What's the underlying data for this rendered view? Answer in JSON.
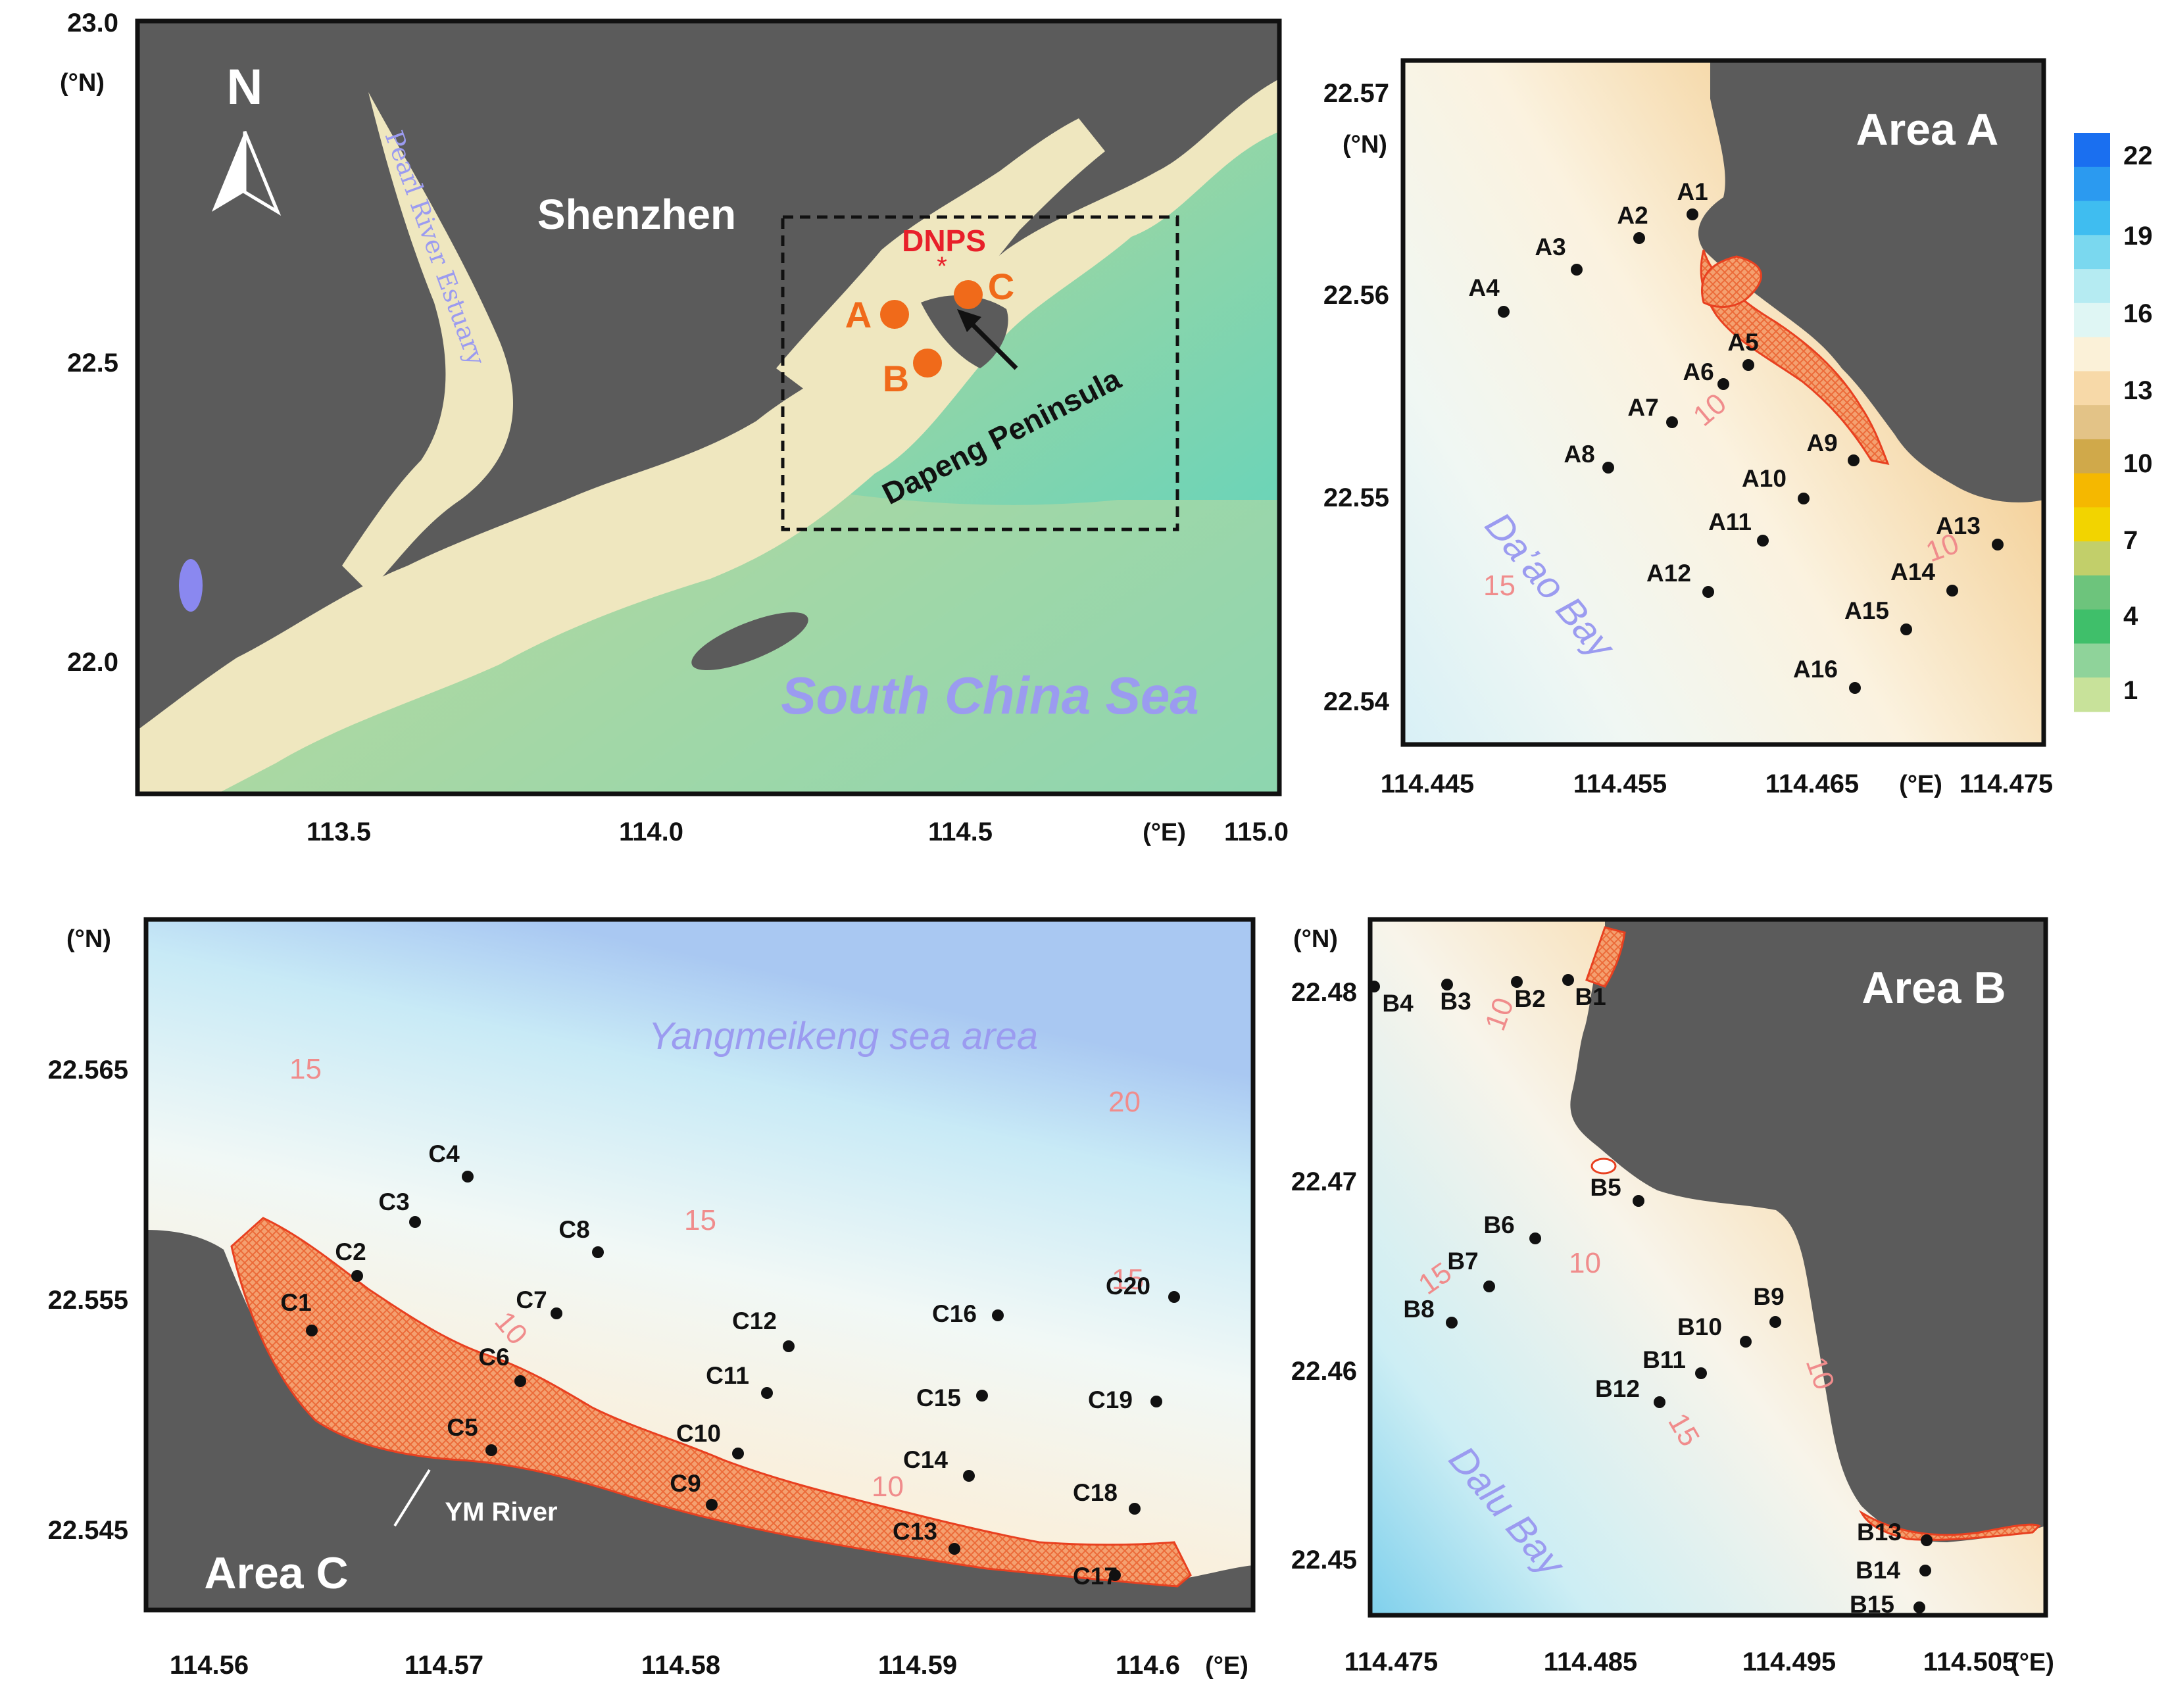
{
  "colors": {
    "land": "#5b5b5b",
    "shallow": "#efe7bf",
    "mid": "#d6d6a0",
    "deep": "#8fd4a6",
    "sea_light": "#e8f4ef",
    "sea_blue": "#bcdcf0",
    "habitat": "#f08050",
    "station": "#111111",
    "isobath_label": "#f08c8c",
    "sea_label": "#9b9bf0",
    "dnps": "#e8202a",
    "site_marker": "#f06a1a"
  },
  "overview": {
    "y_ticks": [
      "23.0",
      "22.5",
      "22.0"
    ],
    "y_unit": "(°N)",
    "x_ticks": [
      "113.5",
      "114.0",
      "114.5",
      "115.0"
    ],
    "x_unit": "(°E)",
    "north_label": "N",
    "city_label": "Shenzhen",
    "river_label": "Pearl River Estuary",
    "sea_label": "South China Sea",
    "plant_label": "DNPS",
    "site_labels": [
      "A",
      "B",
      "C"
    ],
    "peninsula_label": "Dapeng Peninsula"
  },
  "area_a": {
    "title": "Area A",
    "y_ticks": [
      "22.57",
      "22.56",
      "22.55",
      "22.54"
    ],
    "y_unit": "(°N)",
    "x_ticks": [
      "114.445",
      "114.455",
      "114.465",
      "114.475"
    ],
    "x_unit": "(°E)",
    "bay_label": "Da’ao Bay",
    "isobath_labels": [
      "10",
      "10",
      "15"
    ],
    "stations": [
      "A1",
      "A2",
      "A3",
      "A4",
      "A5",
      "A6",
      "A7",
      "A8",
      "A9",
      "A10",
      "A11",
      "A12",
      "A13",
      "A14",
      "A15",
      "A16"
    ]
  },
  "colorbar": {
    "labels": [
      "22",
      "19",
      "16",
      "13",
      "10",
      "7",
      "4",
      "1"
    ],
    "colors": [
      "#1a6ff0",
      "#2b9af0",
      "#3fbdf0",
      "#7ad8ef",
      "#b5ebf2",
      "#dff6f4",
      "#fbf1d8",
      "#f7d9a8",
      "#e3c387",
      "#d0a94a",
      "#f5b800",
      "#f2d400",
      "#c2cf6a",
      "#6dc47c",
      "#3fbf6a",
      "#8fd39a",
      "#c8e29a"
    ]
  },
  "area_c": {
    "title": "Area C",
    "y_ticks": [
      "22.565",
      "22.555",
      "22.545"
    ],
    "y_unit": "(°N)",
    "x_ticks": [
      "114.56",
      "114.57",
      "114.58",
      "114.59",
      "114.6"
    ],
    "x_unit": "(°E)",
    "sea_label": "Yangmeikeng sea area",
    "river_label": "YM River",
    "isobath_labels": [
      "15",
      "20",
      "15",
      "15",
      "10",
      "10"
    ],
    "stations": [
      "C1",
      "C2",
      "C3",
      "C4",
      "C5",
      "C6",
      "C7",
      "C8",
      "C9",
      "C10",
      "C11",
      "C12",
      "C13",
      "C14",
      "C15",
      "C16",
      "C17",
      "C18",
      "C19",
      "C20"
    ]
  },
  "area_b": {
    "title": "Area B",
    "y_ticks": [
      "22.48",
      "22.47",
      "22.46",
      "22.45"
    ],
    "y_unit": "(°N)",
    "x_ticks": [
      "114.475",
      "114.485",
      "114.495",
      "114.505"
    ],
    "x_unit": "(°E)",
    "bay_label": "Dalu Bay",
    "isobath_labels": [
      "10",
      "15",
      "10",
      "15",
      "10"
    ],
    "stations": [
      "B1",
      "B2",
      "B3",
      "B4",
      "B5",
      "B6",
      "B7",
      "B8",
      "B9",
      "B10",
      "B11",
      "B12",
      "B13",
      "B14",
      "B15"
    ]
  }
}
